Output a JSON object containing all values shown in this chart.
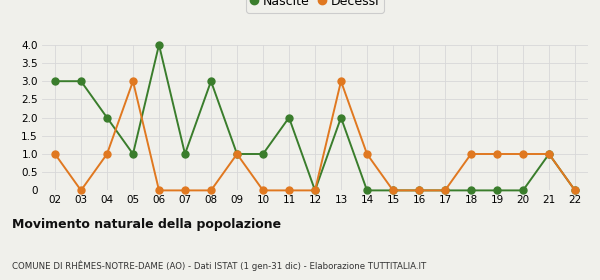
{
  "years": [
    "02",
    "03",
    "04",
    "05",
    "06",
    "07",
    "08",
    "09",
    "10",
    "11",
    "12",
    "13",
    "14",
    "15",
    "16",
    "17",
    "18",
    "19",
    "20",
    "21",
    "22"
  ],
  "nascite": [
    3,
    3,
    2,
    1,
    4,
    1,
    3,
    1,
    1,
    2,
    0,
    2,
    0,
    0,
    0,
    0,
    0,
    0,
    0,
    1,
    0
  ],
  "decessi": [
    1,
    0,
    1,
    3,
    0,
    0,
    0,
    1,
    0,
    0,
    0,
    3,
    1,
    0,
    0,
    0,
    1,
    1,
    1,
    1,
    0
  ],
  "nascite_color": "#3a7d2c",
  "decessi_color": "#e07820",
  "ylim": [
    0,
    4.0
  ],
  "yticks": [
    0,
    0.5,
    1.0,
    1.5,
    2.0,
    2.5,
    3.0,
    3.5,
    4.0
  ],
  "ytick_labels": [
    "0",
    "0.5",
    "1.0",
    "1.5",
    "2.0",
    "2.5",
    "3.0",
    "3.5",
    "4.0"
  ],
  "title": "Movimento naturale della popolazione",
  "subtitle": "COMUNE DI RHÊMES-NOTRE-DAME (AO) - Dati ISTAT (1 gen-31 dic) - Elaborazione TUTTITALIA.IT",
  "legend_nascite": "Nascite",
  "legend_decessi": "Decessi",
  "background_color": "#f0f0eb",
  "grid_color": "#d8d8d8",
  "marker_size": 5,
  "line_width": 1.4
}
